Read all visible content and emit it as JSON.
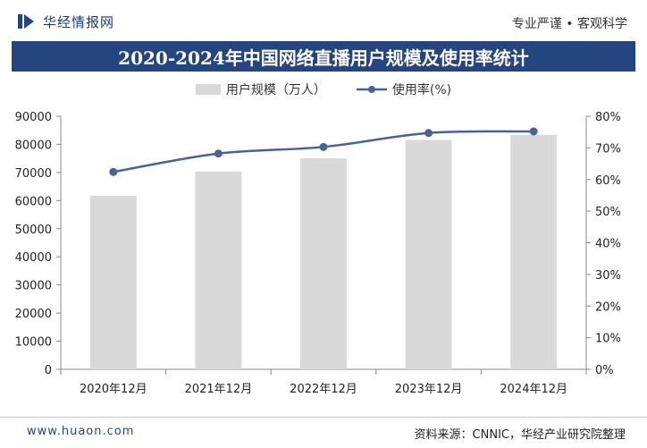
{
  "header": {
    "brand": "华经情报网",
    "slogan": "专业严谨 • 客观科学"
  },
  "chart_data": {
    "type": "bar",
    "title": "2020-2024年中国网络直播用户规模及使用率统计",
    "categories": [
      "2020年12月",
      "2021年12月",
      "2022年12月",
      "2023年12月",
      "2024年12月"
    ],
    "series": [
      {
        "name": "用户规模（万人）",
        "type": "bar",
        "axis": "left",
        "color": "#d9d9d9",
        "values": [
          61685,
          70337,
          75065,
          81566,
          83378
        ]
      },
      {
        "name": "使用率(%)",
        "type": "line",
        "axis": "right",
        "color": "#4a6296",
        "values": [
          62.4,
          68.2,
          70.3,
          74.7,
          75.2
        ]
      }
    ],
    "y_left": {
      "ylim": [
        0,
        90000
      ],
      "ticks": [
        "0",
        "10000",
        "20000",
        "30000",
        "40000",
        "50000",
        "60000",
        "70000",
        "80000",
        "90000"
      ]
    },
    "y_right": {
      "ylim": [
        0,
        80
      ],
      "ticks": [
        "0%",
        "10%",
        "20%",
        "30%",
        "40%",
        "50%",
        "60%",
        "70%",
        "80%"
      ]
    },
    "legend_position": "top-center",
    "grid": false
  },
  "footer": {
    "url": "www.huaon.com",
    "source": "资料来源：CNNIC，华经产业研究院整理"
  }
}
